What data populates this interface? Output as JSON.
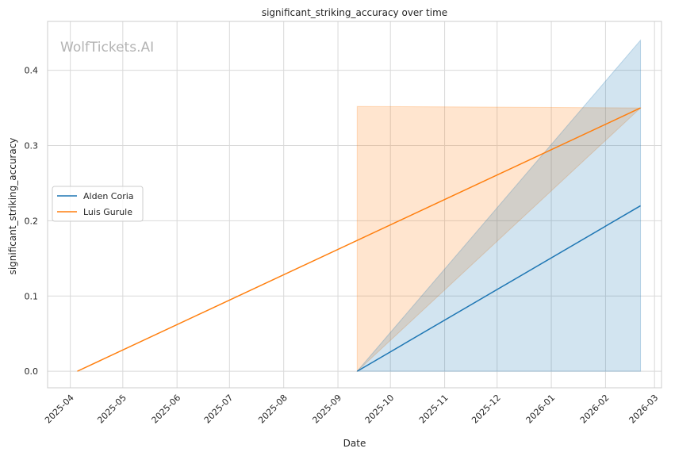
{
  "chart_data": {
    "type": "line",
    "title": "significant_striking_accuracy over time",
    "xlabel": "Date",
    "ylabel": "significant_striking_accuracy",
    "watermark": "WolfTickets.AI",
    "x_ticks": [
      "2025-04",
      "2025-05",
      "2025-06",
      "2025-07",
      "2025-08",
      "2025-09",
      "2025-10",
      "2025-11",
      "2025-12",
      "2026-01",
      "2026-02",
      "2026-03"
    ],
    "y_ticks": [
      "0.0",
      "0.1",
      "0.2",
      "0.3",
      "0.4"
    ],
    "xlim": [
      "2025-03-19",
      "2026-03-05"
    ],
    "ylim": [
      -0.022,
      0.465
    ],
    "grid": true,
    "legend_position": "center-left",
    "series": [
      {
        "name": "Alden Coria",
        "color": "#1f77b4",
        "x": [
          "2025-09-12",
          "2026-02-21"
        ],
        "y": [
          0.0,
          0.22
        ],
        "ci_lower": [
          0.0,
          0.0
        ],
        "ci_upper": [
          0.0,
          0.44
        ]
      },
      {
        "name": "Luis Gurule",
        "color": "#ff7f0e",
        "x": [
          "2025-04-05",
          "2026-02-21"
        ],
        "y": [
          0.0,
          0.35
        ],
        "ci_band": {
          "x": [
            "2025-09-12",
            "2026-02-21"
          ],
          "lower": [
            0.0,
            0.35
          ],
          "upper": [
            0.352,
            0.35
          ]
        }
      }
    ]
  }
}
